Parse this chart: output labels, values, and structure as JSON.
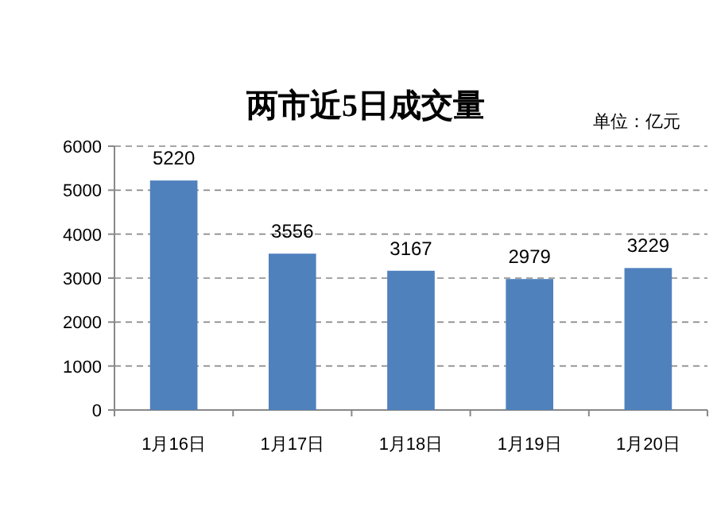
{
  "chart_data": {
    "type": "bar",
    "title": "两市近5日成交量",
    "annotations": [
      "单位：亿元"
    ],
    "categories": [
      "1月16日",
      "1月17日",
      "1月18日",
      "1月19日",
      "1月20日"
    ],
    "values": [
      5220,
      3556,
      3167,
      2979,
      3229
    ],
    "color": "#4f81bd",
    "ylim": [
      0,
      6000
    ],
    "yticks": [
      0,
      1000,
      2000,
      3000,
      4000,
      5000,
      6000
    ],
    "grid": "y",
    "data_labels": true
  }
}
